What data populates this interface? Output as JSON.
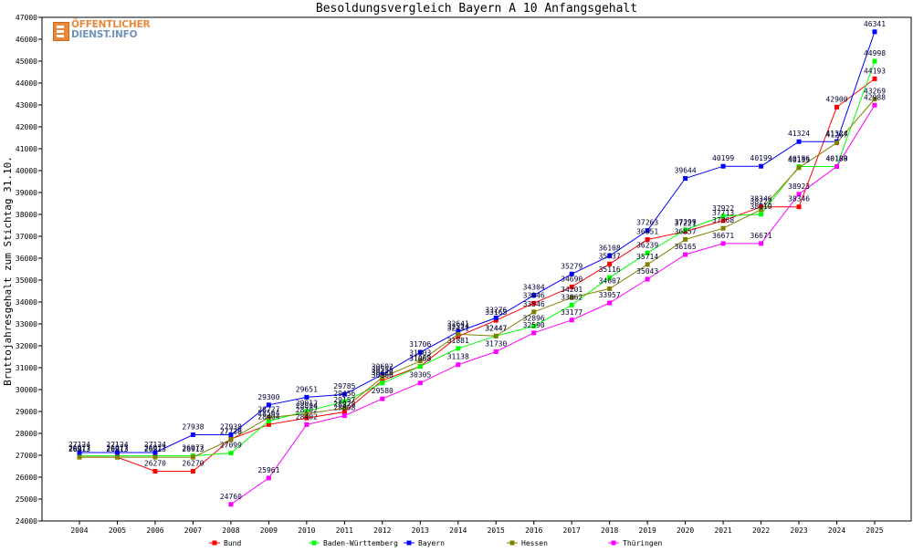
{
  "logo": {
    "line1": "ÖFFENTLICHER",
    "line2": "DIENST.INFO"
  },
  "chart_data": {
    "type": "line",
    "title": "Besoldungsvergleich Bayern A 10 Anfangsgehalt",
    "xlabel": "",
    "ylabel": "Bruttojahresgehalt zum Stichtag 31.10.",
    "ylim": [
      24000,
      47000
    ],
    "yticks": [
      24000,
      25000,
      26000,
      27000,
      28000,
      29000,
      30000,
      31000,
      32000,
      33000,
      34000,
      35000,
      36000,
      37000,
      38000,
      39000,
      40000,
      41000,
      42000,
      43000,
      44000,
      45000,
      46000,
      47000
    ],
    "categories": [
      "2004",
      "2005",
      "2006",
      "2007",
      "2008",
      "2009",
      "2010",
      "2011",
      "2012",
      "2013",
      "2014",
      "2015",
      "2016",
      "2017",
      "2018",
      "2019",
      "2020",
      "2021",
      "2022",
      "2023",
      "2024",
      "2025"
    ],
    "grid": false,
    "legend": "bottom",
    "series": [
      {
        "name": "Bund",
        "color": "#ff0000",
        "values": [
          26913,
          26913,
          26270,
          26270,
          27738,
          28404,
          28702,
          28978,
          30420,
          31063,
          32431,
          33163,
          33946,
          34690,
          35737,
          36851,
          37221,
          37713,
          38346,
          38346,
          42900,
          44193
        ]
      },
      {
        "name": "Baden-Württemberg",
        "color": "#00ff00",
        "values": [
          26977,
          26977,
          26977,
          26977,
          27099,
          28564,
          29012,
          29456,
          30300,
          31058,
          31881,
          32447,
          32896,
          33862,
          35116,
          36239,
          37299,
          37922,
          38010,
          40186,
          40189,
          44998
        ]
      },
      {
        "name": "Bayern",
        "color": "#0000ff",
        "values": [
          27124,
          27124,
          27124,
          27938,
          27938,
          29300,
          29651,
          29785,
          30692,
          31706,
          32641,
          33276,
          34304,
          35279,
          36108,
          37263,
          39644,
          40199,
          40199,
          41324,
          41324,
          46341
        ]
      },
      {
        "name": "Hessen",
        "color": "#808000",
        "values": [
          26913,
          26913,
          26913,
          26913,
          27720,
          28727,
          28894,
          29157,
          30555,
          31303,
          32524,
          32447,
          33546,
          34201,
          34607,
          35714,
          36857,
          37368,
          38222,
          40133,
          41267,
          43269
        ]
      },
      {
        "name": "Thüringen",
        "color": "#ff00ff",
        "values": [
          null,
          null,
          null,
          null,
          24760,
          25961,
          28402,
          28808,
          29580,
          30305,
          31138,
          31730,
          32590,
          33177,
          33957,
          35043,
          36165,
          36671,
          36671,
          38923,
          40188,
          42988
        ]
      }
    ]
  }
}
